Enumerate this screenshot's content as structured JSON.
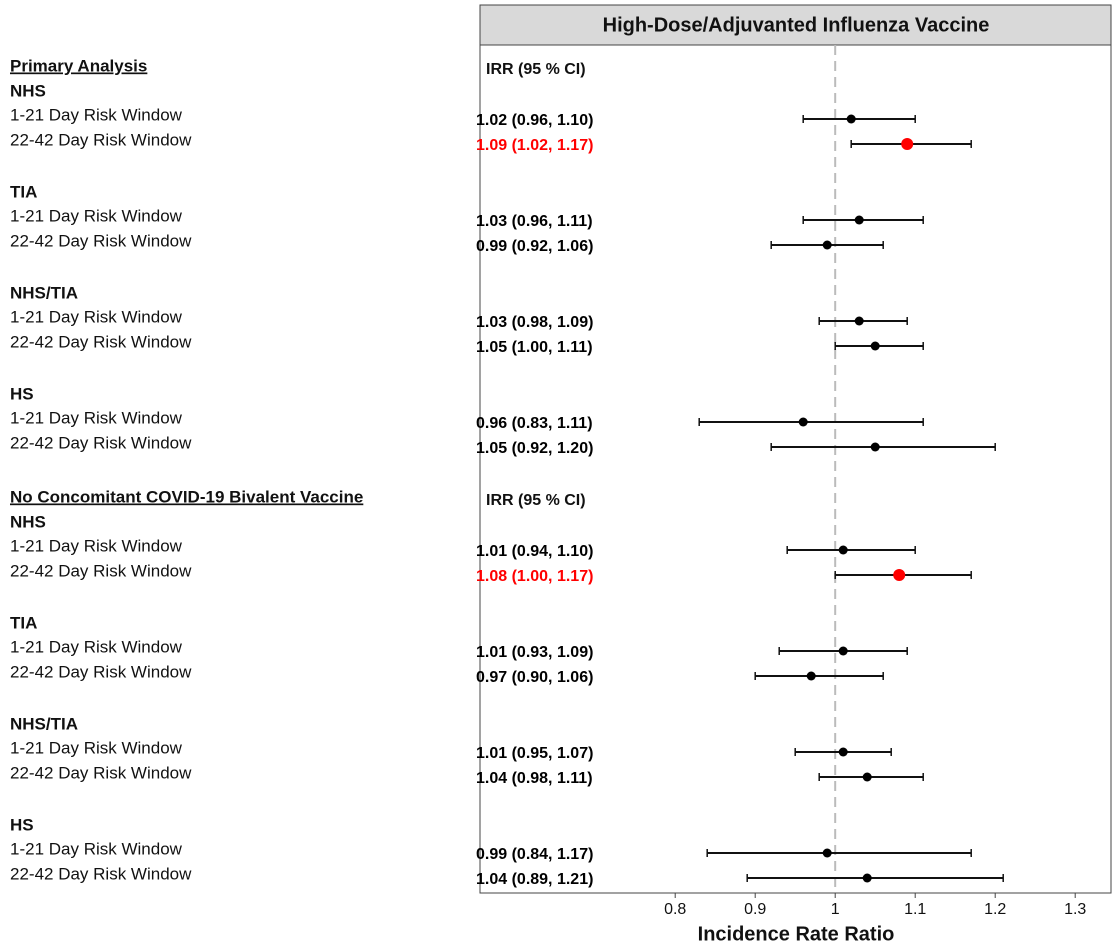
{
  "chart_data": {
    "type": "forest",
    "title": "High-Dose/Adjuvanted Influenza Vaccine",
    "x_label": "Incidence Rate Ratio",
    "xlim": [
      0.556,
      1.346
    ],
    "xticks": [
      0.8,
      0.9,
      1.0,
      1.1,
      1.2,
      1.3
    ],
    "reference_line": 1.0,
    "sections": [
      {
        "title": "Primary Analysis",
        "ci_header": "IRR (95 % CI)",
        "groups": [
          {
            "name": "NHS",
            "rows": [
              {
                "label": "1-21 Day Risk Window",
                "value": 1.02,
                "lower": 0.96,
                "upper": 1.1,
                "value_label": "1.02 (0.96,  1.10)",
                "color": "#000000"
              },
              {
                "label": "22-42 Day Risk Window",
                "value": 1.09,
                "lower": 1.02,
                "upper": 1.17,
                "value_label": "1.09 (1.02,  1.17)",
                "color": "#ff0000"
              }
            ]
          },
          {
            "name": "TIA",
            "rows": [
              {
                "label": "1-21 Day Risk Window",
                "value": 1.03,
                "lower": 0.96,
                "upper": 1.11,
                "value_label": "1.03 (0.96,  1.11)",
                "color": "#000000"
              },
              {
                "label": "22-42 Day Risk Window",
                "value": 0.99,
                "lower": 0.92,
                "upper": 1.06,
                "value_label": "0.99 (0.92,  1.06)",
                "color": "#000000"
              }
            ]
          },
          {
            "name": "NHS/TIA",
            "rows": [
              {
                "label": "1-21 Day Risk Window",
                "value": 1.03,
                "lower": 0.98,
                "upper": 1.09,
                "value_label": "1.03 (0.98,  1.09)",
                "color": "#000000"
              },
              {
                "label": "22-42 Day Risk Window",
                "value": 1.05,
                "lower": 1.0,
                "upper": 1.11,
                "value_label": "1.05 (1.00,  1.11)",
                "color": "#000000"
              }
            ]
          },
          {
            "name": "HS",
            "rows": [
              {
                "label": "1-21 Day Risk Window",
                "value": 0.96,
                "lower": 0.83,
                "upper": 1.11,
                "value_label": "0.96 (0.83,  1.11)",
                "color": "#000000"
              },
              {
                "label": "22-42 Day Risk Window",
                "value": 1.05,
                "lower": 0.92,
                "upper": 1.2,
                "value_label": "1.05 (0.92,  1.20)",
                "color": "#000000"
              }
            ]
          }
        ]
      },
      {
        "title": "No Concomitant COVID-19 Bivalent Vaccine",
        "ci_header": "IRR (95 % CI)",
        "groups": [
          {
            "name": "NHS",
            "rows": [
              {
                "label": "1-21 Day Risk Window",
                "value": 1.01,
                "lower": 0.94,
                "upper": 1.1,
                "value_label": "1.01 (0.94,  1.10)",
                "color": "#000000"
              },
              {
                "label": "22-42 Day Risk Window",
                "value": 1.08,
                "lower": 1.0,
                "upper": 1.17,
                "value_label": "1.08 (1.00,  1.17)",
                "color": "#ff0000"
              }
            ]
          },
          {
            "name": "TIA",
            "rows": [
              {
                "label": "1-21 Day Risk Window",
                "value": 1.01,
                "lower": 0.93,
                "upper": 1.09,
                "value_label": "1.01 (0.93,  1.09)",
                "color": "#000000"
              },
              {
                "label": "22-42 Day Risk Window",
                "value": 0.97,
                "lower": 0.9,
                "upper": 1.06,
                "value_label": "0.97 (0.90,  1.06)",
                "color": "#000000"
              }
            ]
          },
          {
            "name": "NHS/TIA",
            "rows": [
              {
                "label": "1-21 Day Risk Window",
                "value": 1.01,
                "lower": 0.95,
                "upper": 1.07,
                "value_label": "1.01 (0.95,  1.07)",
                "color": "#000000"
              },
              {
                "label": "22-42 Day Risk Window",
                "value": 1.04,
                "lower": 0.98,
                "upper": 1.11,
                "value_label": "1.04 (0.98,  1.11)",
                "color": "#000000"
              }
            ]
          },
          {
            "name": "HS",
            "rows": [
              {
                "label": "1-21 Day Risk Window",
                "value": 0.99,
                "lower": 0.84,
                "upper": 1.17,
                "value_label": "0.99 (0.84,  1.17)",
                "color": "#000000"
              },
              {
                "label": "22-42 Day Risk Window",
                "value": 1.04,
                "lower": 0.89,
                "upper": 1.21,
                "value_label": "1.04 (0.89,  1.21)",
                "color": "#000000"
              }
            ]
          }
        ]
      }
    ]
  }
}
